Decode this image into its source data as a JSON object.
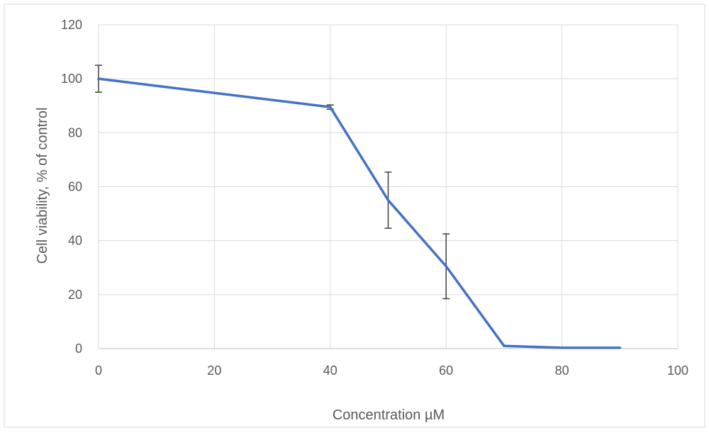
{
  "chart_data": {
    "type": "line",
    "title": "",
    "xlabel": "Concentration µM",
    "ylabel": "Cell viability, % of control",
    "xlim": [
      0,
      100
    ],
    "ylim": [
      0,
      120
    ],
    "x_ticks": [
      0,
      20,
      40,
      60,
      80,
      100
    ],
    "y_ticks": [
      0,
      20,
      40,
      60,
      80,
      100,
      120
    ],
    "grid": true,
    "legend": "none",
    "series": [
      {
        "color": "#4472C4",
        "x": [
          0,
          40,
          50,
          60,
          70,
          80,
          90
        ],
        "y": [
          100,
          89.5,
          55,
          30.5,
          1,
          0.3,
          0.3
        ],
        "error": [
          5,
          0.8,
          10.4,
          12,
          0,
          0,
          0
        ]
      }
    ],
    "colors": {
      "line": "#4472C4",
      "grid": "#D9D9D9",
      "error_bar": "#404040",
      "text": "#595959",
      "frame": "#D9D9D9"
    }
  }
}
